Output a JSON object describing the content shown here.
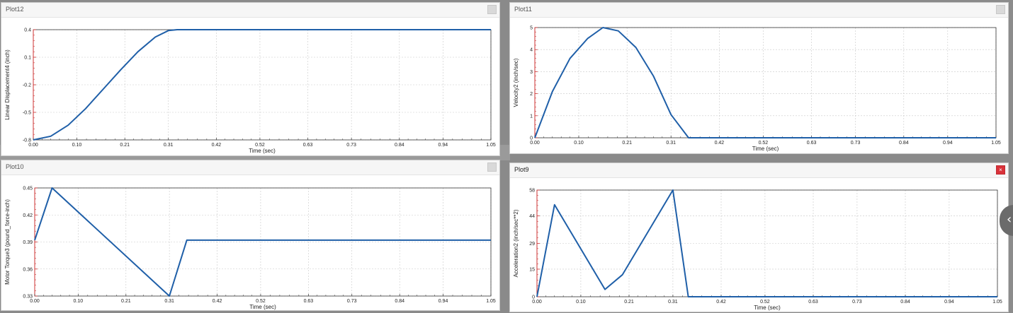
{
  "colors": {
    "line": "#1f5fa8",
    "grid": "#c8c8c8",
    "frame": "#333333",
    "yaxis_accent": "#cc3333",
    "close_active": "#d9323a"
  },
  "chart_data": [
    {
      "id": "plot12",
      "panel_title": "Plot12",
      "type": "line",
      "active": false,
      "xlabel": "Time (sec)",
      "ylabel": "Linear Displacement4 (inch)",
      "xlim": [
        0,
        1.05
      ],
      "ylim": [
        -0.8,
        0.4
      ],
      "xticks": [
        0,
        0.1,
        0.21,
        0.31,
        0.42,
        0.52,
        0.63,
        0.73,
        0.84,
        0.94,
        1.05
      ],
      "xtick_labels": [
        "0.00",
        "0.10",
        "0.21",
        "0.31",
        "0.42",
        "0.52",
        "0.63",
        "0.73",
        "0.84",
        "0.94",
        "1.05"
      ],
      "yticks": [
        -0.8,
        -0.5,
        -0.2,
        0.1,
        0.4
      ],
      "ytick_labels": [
        "-0.8",
        "-0.5",
        "-0.2",
        "0.1",
        "0.4"
      ],
      "grid": true,
      "series": [
        {
          "x": [
            0,
            0.04,
            0.08,
            0.12,
            0.16,
            0.2,
            0.24,
            0.28,
            0.31,
            0.33,
            1.05
          ],
          "y": [
            -0.8,
            -0.76,
            -0.64,
            -0.46,
            -0.25,
            -0.04,
            0.16,
            0.32,
            0.39,
            0.4,
            0.4
          ]
        }
      ]
    },
    {
      "id": "plot11",
      "panel_title": "Plot11",
      "type": "line",
      "active": false,
      "xlabel": "Time (sec)",
      "ylabel": "Velocity2 (inch/sec)",
      "xlim": [
        0,
        1.05
      ],
      "ylim": [
        0,
        5
      ],
      "xticks": [
        0,
        0.1,
        0.21,
        0.31,
        0.42,
        0.52,
        0.63,
        0.73,
        0.84,
        0.94,
        1.05
      ],
      "xtick_labels": [
        "0.00",
        "0.10",
        "0.21",
        "0.31",
        "0.42",
        "0.52",
        "0.63",
        "0.73",
        "0.84",
        "0.94",
        "1.05"
      ],
      "yticks": [
        0,
        1,
        2,
        3,
        4,
        5
      ],
      "ytick_labels": [
        "0",
        "1",
        "2",
        "3",
        "4",
        "5"
      ],
      "grid": true,
      "series": [
        {
          "x": [
            0,
            0.04,
            0.08,
            0.12,
            0.155,
            0.19,
            0.23,
            0.27,
            0.31,
            0.35,
            1.05
          ],
          "y": [
            0,
            2.1,
            3.6,
            4.5,
            5.0,
            4.85,
            4.1,
            2.8,
            1.05,
            0,
            0
          ]
        }
      ]
    },
    {
      "id": "plot10",
      "panel_title": "Plot10",
      "type": "line",
      "active": false,
      "xlabel": "Time (sec)",
      "ylabel": "Motor Torque3 (pound_force-inch)",
      "xlim": [
        0,
        1.05
      ],
      "ylim": [
        0.33,
        0.45
      ],
      "xticks": [
        0,
        0.1,
        0.21,
        0.31,
        0.42,
        0.52,
        0.63,
        0.73,
        0.84,
        0.94,
        1.05
      ],
      "xtick_labels": [
        "0.00",
        "0.10",
        "0.21",
        "0.31",
        "0.42",
        "0.52",
        "0.63",
        "0.73",
        "0.84",
        "0.94",
        "1.05"
      ],
      "yticks": [
        0.33,
        0.36,
        0.39,
        0.42,
        0.45
      ],
      "ytick_labels": [
        "0.33",
        "0.36",
        "0.39",
        "0.42",
        "0.45"
      ],
      "grid": true,
      "series": [
        {
          "x": [
            0,
            0.04,
            0.31,
            0.35,
            1.05
          ],
          "y": [
            0.392,
            0.45,
            0.33,
            0.392,
            0.392
          ]
        }
      ]
    },
    {
      "id": "plot9",
      "panel_title": "Plot9",
      "type": "line",
      "active": true,
      "xlabel": "Time (sec)",
      "ylabel": "Acceleration2 (inch/sec**2)",
      "xlim": [
        0,
        1.05
      ],
      "ylim": [
        0,
        58
      ],
      "xticks": [
        0,
        0.1,
        0.21,
        0.31,
        0.42,
        0.52,
        0.63,
        0.73,
        0.84,
        0.94,
        1.05
      ],
      "xtick_labels": [
        "0.00",
        "0.10",
        "0.21",
        "0.31",
        "0.42",
        "0.52",
        "0.63",
        "0.73",
        "0.84",
        "0.94",
        "1.05"
      ],
      "yticks": [
        0,
        15,
        29,
        44,
        58
      ],
      "ytick_labels": [
        "0",
        "15",
        "29",
        "44",
        "58"
      ],
      "grid": true,
      "series": [
        {
          "x": [
            0,
            0.04,
            0.155,
            0.195,
            0.31,
            0.345,
            1.05
          ],
          "y": [
            0,
            50,
            4,
            12,
            58,
            0,
            0
          ]
        }
      ]
    }
  ]
}
